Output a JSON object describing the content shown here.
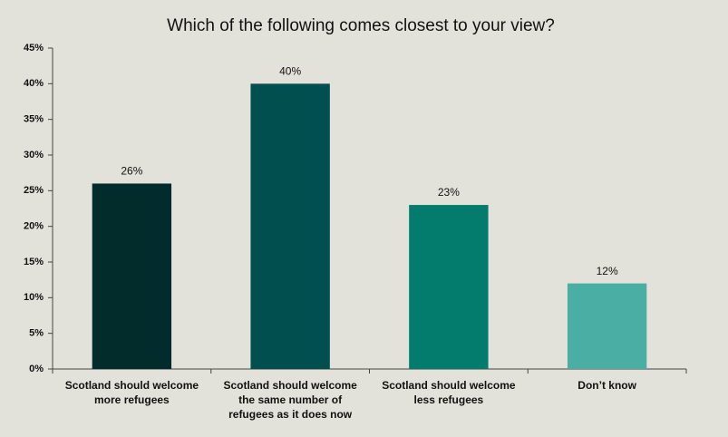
{
  "chart_data": {
    "type": "bar",
    "title": "Which of the following comes closest to your view?",
    "categories": [
      "Scotland should welcome more refugees",
      "Scotland should welcome the same number of refugees as it does now",
      "Scotland should welcome less refugees",
      "Don’t know"
    ],
    "values": [
      26,
      40,
      23,
      12
    ],
    "value_labels": [
      "26%",
      "40%",
      "23%",
      "12%"
    ],
    "colors": [
      "#022c2c",
      "#024f4f",
      "#037b6d",
      "#4baea5"
    ],
    "ylim": [
      0,
      45
    ],
    "yticks": [
      {
        "value": 0,
        "label": "0%"
      },
      {
        "value": 5,
        "label": "5%"
      },
      {
        "value": 10,
        "label": "10%"
      },
      {
        "value": 15,
        "label": "15%"
      },
      {
        "value": 20,
        "label": "20%"
      },
      {
        "value": 25,
        "label": "25%"
      },
      {
        "value": 30,
        "label": "30%"
      },
      {
        "value": 35,
        "label": "35%"
      },
      {
        "value": 40,
        "label": "40%"
      },
      {
        "value": 45,
        "label": "45%"
      }
    ],
    "grid": false
  }
}
